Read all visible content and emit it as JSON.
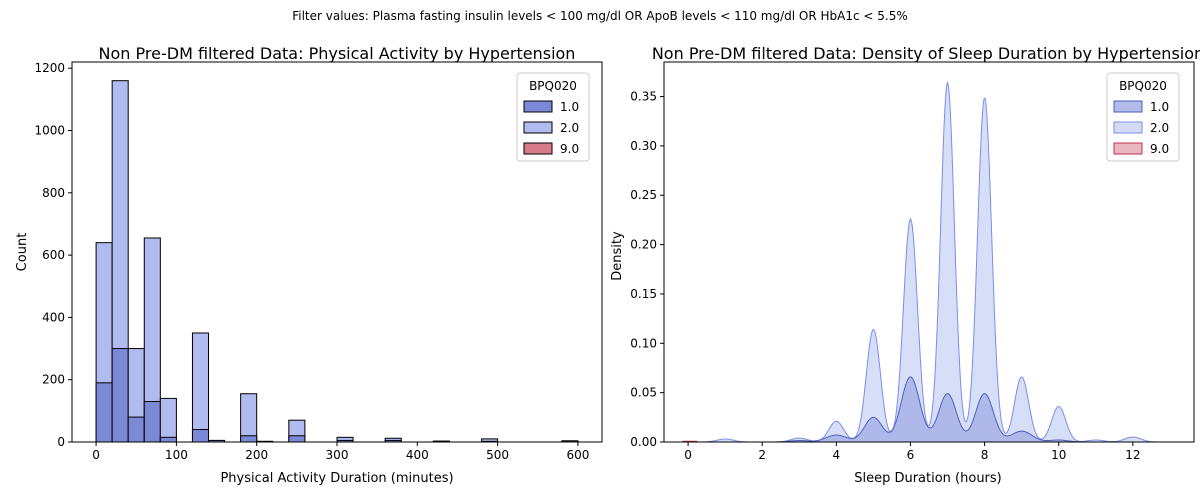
{
  "suptitle": "Filter values: Plasma fasting insulin levels < 100 mg/dl OR ApoB levels < 110 mg/dl OR HbA1c < 5.5%",
  "colors": {
    "series_1": "#4a5fc1",
    "series_2": "#7b8ee8",
    "series_9": "#c0334d",
    "hist_1_fill": "#7b89d6",
    "hist_2_fill": "#b0bcf0",
    "hist_9_fill": "#d77b8a",
    "kde_1_fill": "#b3bce8",
    "kde_2_fill": "#d3dbf7",
    "kde_9_fill": "#e9b7c1"
  },
  "chart_data": [
    {
      "type": "bar",
      "title": "Non Pre-DM filtered Data: Physical Activity by Hypertension",
      "xlabel": "Physical Activity Duration (minutes)",
      "ylabel": "Count",
      "xlim": [
        -30,
        630
      ],
      "ylim": [
        0,
        1220
      ],
      "xticks": [
        0,
        100,
        200,
        300,
        400,
        500,
        600
      ],
      "yticks": [
        0,
        200,
        400,
        600,
        800,
        1000,
        1200
      ],
      "grid": false,
      "legend": {
        "title": "BPQ020",
        "placement": "top-right",
        "entries": [
          "1.0",
          "2.0",
          "9.0"
        ]
      },
      "bin_width": 20,
      "bin_starts": [
        0,
        20,
        40,
        60,
        80,
        120,
        140,
        180,
        200,
        240,
        300,
        360,
        420,
        480,
        580
      ],
      "series": [
        {
          "name": "1.0",
          "values": [
            190,
            300,
            80,
            130,
            15,
            40,
            5,
            20,
            2,
            20,
            5,
            5,
            2,
            2,
            1
          ]
        },
        {
          "name": "2.0",
          "values": [
            640,
            1160,
            300,
            655,
            140,
            350,
            5,
            155,
            2,
            70,
            15,
            12,
            3,
            10,
            4
          ]
        },
        {
          "name": "9.0",
          "values": [
            0,
            0,
            0,
            0,
            0,
            0,
            0,
            0,
            0,
            0,
            0,
            0,
            0,
            0,
            0
          ]
        }
      ]
    },
    {
      "type": "area",
      "title": "Non Pre-DM filtered Data: Density of Sleep Duration by Hypertension",
      "xlabel": "Sleep Duration (hours)",
      "ylabel": "Density",
      "xlim": [
        -0.65,
        13.65
      ],
      "ylim": [
        0,
        0.385
      ],
      "xticks": [
        0,
        2,
        4,
        6,
        8,
        10,
        12
      ],
      "yticks": [
        0.0,
        0.05,
        0.1,
        0.15,
        0.2,
        0.25,
        0.3,
        0.35
      ],
      "ytick_labels": [
        "0.00",
        "0.05",
        "0.10",
        "0.15",
        "0.20",
        "0.25",
        "0.30",
        "0.35"
      ],
      "grid": false,
      "legend": {
        "title": "BPQ020",
        "placement": "top-right",
        "entries": [
          "1.0",
          "2.0",
          "9.0"
        ]
      },
      "series": [
        {
          "name": "1.0",
          "peaks": [
            {
              "x": 3.0,
              "h": 0.0015,
              "sd": 0.25
            },
            {
              "x": 4.0,
              "h": 0.007,
              "sd": 0.28
            },
            {
              "x": 5.0,
              "h": 0.025,
              "sd": 0.24
            },
            {
              "x": 6.0,
              "h": 0.066,
              "sd": 0.25
            },
            {
              "x": 7.0,
              "h": 0.049,
              "sd": 0.24
            },
            {
              "x": 8.0,
              "h": 0.049,
              "sd": 0.24
            },
            {
              "x": 9.0,
              "h": 0.011,
              "sd": 0.28
            },
            {
              "x": 10.0,
              "h": 0.002,
              "sd": 0.25
            }
          ]
        },
        {
          "name": "2.0",
          "peaks": [
            {
              "x": 1.0,
              "h": 0.003,
              "sd": 0.22
            },
            {
              "x": 3.0,
              "h": 0.004,
              "sd": 0.22
            },
            {
              "x": 4.0,
              "h": 0.021,
              "sd": 0.2
            },
            {
              "x": 5.0,
              "h": 0.114,
              "sd": 0.19
            },
            {
              "x": 6.0,
              "h": 0.226,
              "sd": 0.19
            },
            {
              "x": 7.0,
              "h": 0.364,
              "sd": 0.185
            },
            {
              "x": 8.0,
              "h": 0.349,
              "sd": 0.19
            },
            {
              "x": 9.0,
              "h": 0.066,
              "sd": 0.19
            },
            {
              "x": 10.0,
              "h": 0.036,
              "sd": 0.19
            },
            {
              "x": 11.0,
              "h": 0.002,
              "sd": 0.22
            },
            {
              "x": 12.0,
              "h": 0.005,
              "sd": 0.22
            }
          ]
        },
        {
          "name": "9.0",
          "peaks": []
        }
      ]
    }
  ]
}
